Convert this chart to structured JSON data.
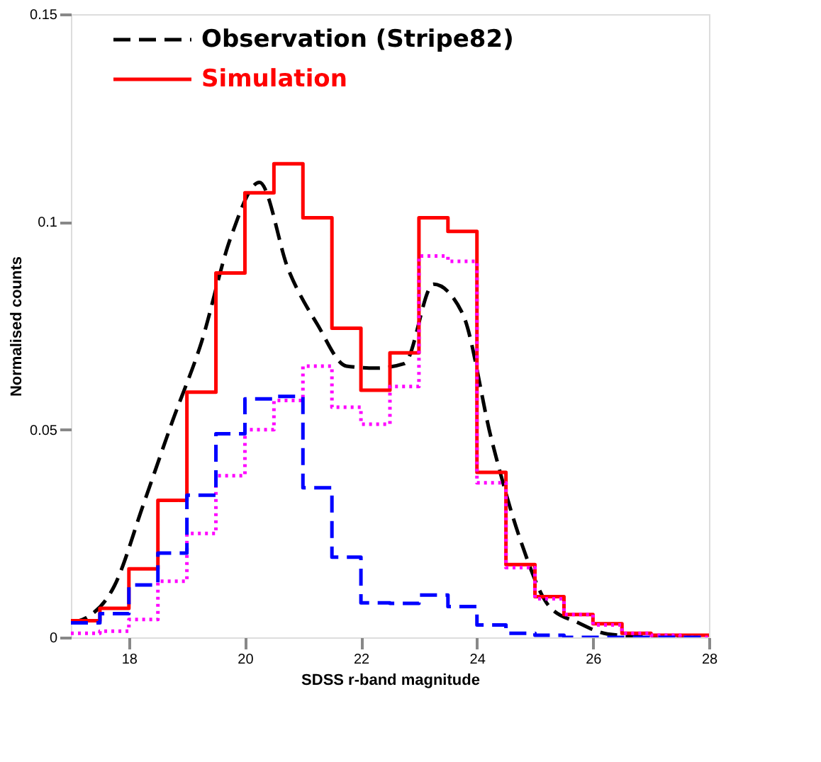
{
  "chart_data": {
    "type": "histogram",
    "xlabel": "SDSS r-band magnitude",
    "ylabel": "Normalised counts",
    "xlim": [
      17,
      28
    ],
    "ylim": [
      0,
      0.15
    ],
    "xticks": [
      18,
      20,
      22,
      24,
      26,
      28
    ],
    "yticks": [
      0,
      0.05,
      0.1,
      0.15
    ],
    "grid": false,
    "legend": "top left",
    "bins": [
      17,
      17.5,
      18,
      18.5,
      19,
      19.5,
      20,
      20.5,
      21,
      21.5,
      22,
      22.5,
      23,
      23.5,
      24,
      24.5,
      25,
      25.5,
      26,
      26.5,
      27,
      27.5,
      28
    ],
    "series": [
      {
        "name": "Observation (Stripe82)",
        "type": "line",
        "line_style": "dashed",
        "color": "#000000",
        "x": [
          17.0,
          17.25,
          17.75,
          18.25,
          18.75,
          19.25,
          19.75,
          20.25,
          20.75,
          21.25,
          21.75,
          22.25,
          22.75,
          23.25,
          23.75,
          24.25,
          24.75,
          25.25,
          25.75,
          26.25,
          26.75,
          27.25,
          27.75
        ],
        "values": [
          0.0035,
          0.0046,
          0.0124,
          0.032,
          0.052,
          0.071,
          0.096,
          0.1095,
          0.0885,
          0.0753,
          0.0653,
          0.0648,
          0.0659,
          0.085,
          0.078,
          0.0477,
          0.0234,
          0.0074,
          0.0035,
          0.0008,
          0.0003,
          0,
          0
        ]
      },
      {
        "name": "Simulation",
        "line_style": "solid",
        "color": "#ff0000",
        "values": [
          0.004,
          0.007,
          0.0165,
          0.033,
          0.059,
          0.0877,
          0.107,
          0.114,
          0.101,
          0.0744,
          0.0595,
          0.0685,
          0.101,
          0.0977,
          0.0397,
          0.0175,
          0.0098,
          0.0055,
          0.0033,
          0.001,
          0.0005,
          0.0005
        ]
      },
      {
        "line_style": "dotted",
        "color": "#ff00ff",
        "values": [
          0.001,
          0.0015,
          0.0043,
          0.0135,
          0.025,
          0.0389,
          0.05,
          0.057,
          0.0653,
          0.0554,
          0.0513,
          0.0604,
          0.0918,
          0.0905,
          0.0372,
          0.0168,
          0.0093,
          0.0055,
          0.003,
          0.001,
          0.0005,
          0
        ]
      },
      {
        "line_style": "dashed",
        "color": "#0000ff",
        "values": [
          0.0035,
          0.0057,
          0.0126,
          0.0203,
          0.0342,
          0.049,
          0.0574,
          0.058,
          0.036,
          0.0193,
          0.0083,
          0.0082,
          0.0102,
          0.0074,
          0.003,
          0.001,
          0.0005,
          0,
          0,
          0,
          0,
          0
        ]
      }
    ]
  }
}
